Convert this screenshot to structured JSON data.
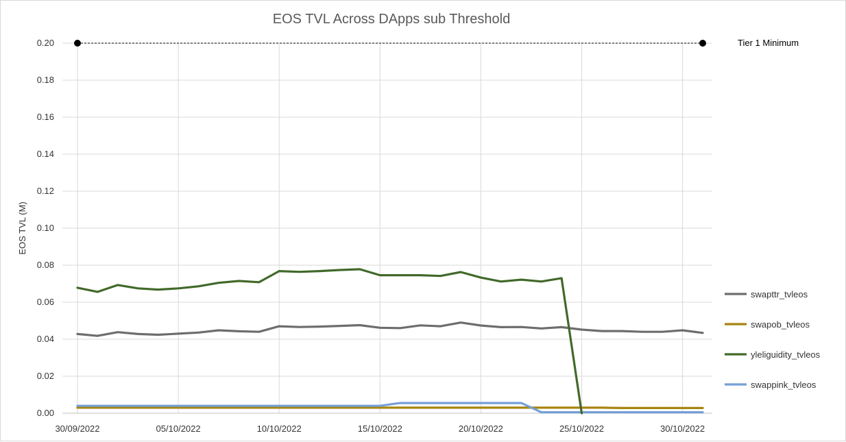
{
  "chart_data": {
    "type": "line",
    "title": "EOS TVL Across DApps sub Threshold",
    "ylabel": "EOS TVL (M)",
    "xlabel": "",
    "ylim": [
      0,
      0.2
    ],
    "y_ticks": [
      "0.00",
      "0.02",
      "0.04",
      "0.06",
      "0.08",
      "0.10",
      "0.12",
      "0.14",
      "0.16",
      "0.18",
      "0.20"
    ],
    "x_ticks": [
      "30/09/2022",
      "05/10/2022",
      "10/10/2022",
      "15/10/2022",
      "20/10/2022",
      "25/10/2022",
      "30/10/2022"
    ],
    "grid": true,
    "legend_position": "right",
    "x_dates": [
      "30/09/2022",
      "01/10/2022",
      "02/10/2022",
      "03/10/2022",
      "04/10/2022",
      "05/10/2022",
      "06/10/2022",
      "07/10/2022",
      "08/10/2022",
      "09/10/2022",
      "10/10/2022",
      "11/10/2022",
      "12/10/2022",
      "13/10/2022",
      "14/10/2022",
      "15/10/2022",
      "16/10/2022",
      "17/10/2022",
      "18/10/2022",
      "19/10/2022",
      "20/10/2022",
      "21/10/2022",
      "22/10/2022",
      "23/10/2022",
      "24/10/2022",
      "25/10/2022",
      "26/10/2022",
      "27/10/2022",
      "28/10/2022",
      "29/10/2022",
      "30/10/2022",
      "31/10/2022"
    ],
    "series": [
      {
        "name": "swapttr_tvleos",
        "color": "#6d6d6d",
        "values": [
          0.0428,
          0.0418,
          0.0438,
          0.0428,
          0.0424,
          0.043,
          0.0436,
          0.0448,
          0.0443,
          0.044,
          0.047,
          0.0466,
          0.0468,
          0.0472,
          0.0476,
          0.0462,
          0.046,
          0.0475,
          0.047,
          0.049,
          0.0474,
          0.0465,
          0.0466,
          0.0458,
          0.0465,
          0.0452,
          0.0444,
          0.0444,
          0.044,
          0.044,
          0.0448,
          0.0434
        ]
      },
      {
        "name": "swapob_tvleos",
        "color": "#a8850f",
        "values": [
          0.003,
          0.003,
          0.003,
          0.003,
          0.003,
          0.003,
          0.003,
          0.003,
          0.003,
          0.003,
          0.003,
          0.003,
          0.003,
          0.003,
          0.003,
          0.003,
          0.003,
          0.003,
          0.003,
          0.003,
          0.003,
          0.003,
          0.003,
          0.003,
          0.003,
          0.003,
          0.003,
          0.0028,
          0.0028,
          0.0028,
          0.0028,
          0.0028
        ]
      },
      {
        "name": "yleliguidity_tvleos",
        "color": "#42692a",
        "values": [
          0.0678,
          0.0656,
          0.0693,
          0.0675,
          0.0668,
          0.0675,
          0.0686,
          0.0705,
          0.0715,
          0.0708,
          0.0768,
          0.0764,
          0.0768,
          0.0774,
          0.0778,
          0.0746,
          0.0746,
          0.0746,
          0.0742,
          0.0763,
          0.0733,
          0.0712,
          0.0722,
          0.0712,
          0.073,
          0.0
        ]
      },
      {
        "name": "swappink_tvleos",
        "color": "#759fd6",
        "values": [
          0.004,
          0.004,
          0.004,
          0.004,
          0.004,
          0.004,
          0.004,
          0.004,
          0.004,
          0.004,
          0.004,
          0.004,
          0.004,
          0.004,
          0.004,
          0.004,
          0.0055,
          0.0055,
          0.0055,
          0.0055,
          0.0055,
          0.0055,
          0.0055,
          0.0005,
          0.0005,
          0.0005,
          0.0005,
          0.0005,
          0.0005,
          0.0005,
          0.0005,
          0.0005
        ]
      }
    ],
    "annotation": {
      "label": "Tier 1 Minimum",
      "value": 0.2,
      "style": "dotted line with endpoint markers",
      "color": "#000000"
    }
  }
}
